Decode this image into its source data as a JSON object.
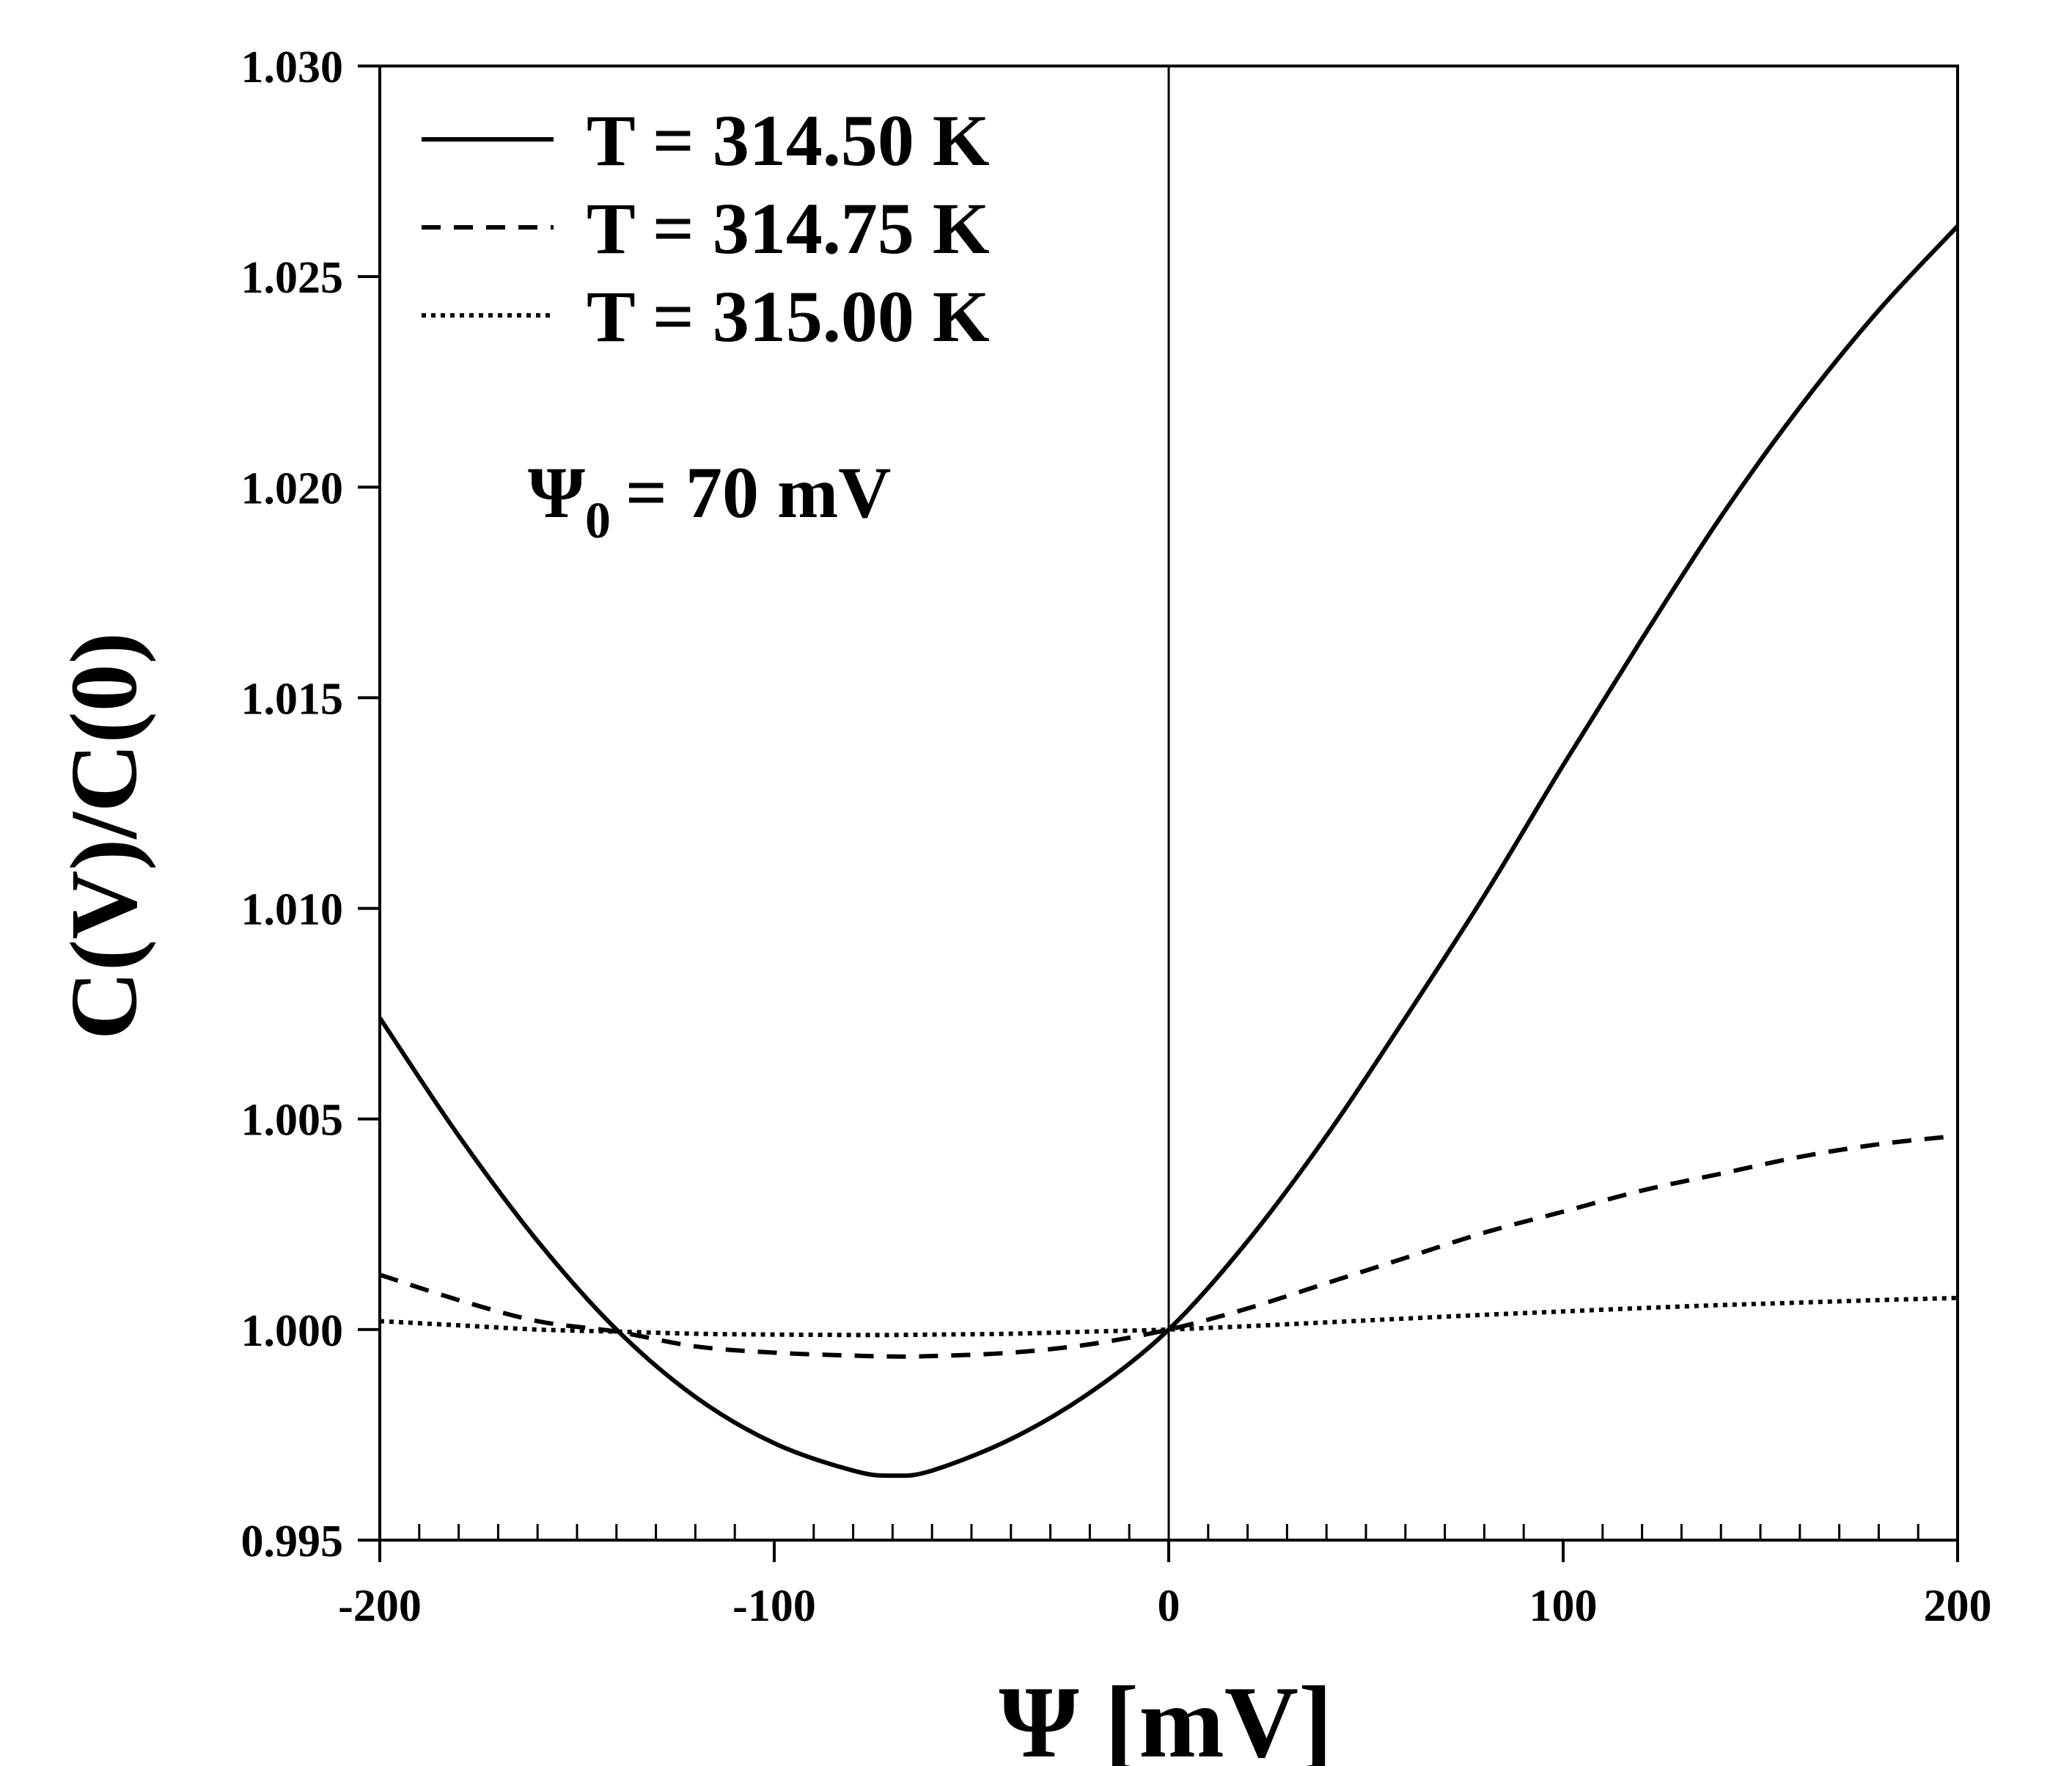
{
  "chart_data": {
    "type": "line",
    "title": "",
    "xlabel": "Ψ [mV]",
    "ylabel": "C(V)/C(0)",
    "xlim": [
      -200,
      200
    ],
    "ylim": [
      0.995,
      1.03
    ],
    "x_ticks": [
      -200,
      -100,
      0,
      100,
      200
    ],
    "x_tick_labels": [
      "-200",
      "-100",
      "0",
      "100",
      "200"
    ],
    "y_ticks": [
      0.995,
      1.0,
      1.005,
      1.01,
      1.015,
      1.02,
      1.025,
      1.03
    ],
    "y_tick_labels": [
      "0.995",
      "1.000",
      "1.005",
      "1.010",
      "1.015",
      "1.020",
      "1.025",
      "1.030"
    ],
    "grid": false,
    "legend_position": "top-left",
    "annotation": {
      "symbol": "Ψ",
      "subscript": "0",
      "text": "= 70 mV"
    },
    "x": [
      -200,
      -180,
      -160,
      -140,
      -120,
      -100,
      -80,
      -70,
      -60,
      -40,
      -20,
      0,
      20,
      40,
      60,
      80,
      100,
      120,
      140,
      160,
      180,
      200
    ],
    "series": [
      {
        "name": "T = 314.50 K",
        "style": "solid",
        "values": [
          1.0074,
          1.0046,
          1.0021,
          1.0,
          0.9984,
          0.9973,
          0.99665,
          0.99653,
          0.99665,
          0.9974,
          0.9985,
          1.0,
          1.0021,
          1.0046,
          1.0074,
          1.0103,
          1.0134,
          1.0164,
          1.0193,
          1.0219,
          1.0242,
          1.0262
        ]
      },
      {
        "name": "T = 314.75 K",
        "style": "dashed",
        "values": [
          1.0013,
          1.0007,
          1.0002,
          0.99995,
          0.9996,
          0.99945,
          0.99938,
          0.99936,
          0.99937,
          0.99945,
          0.99965,
          1.0,
          1.0005,
          1.0011,
          1.0017,
          1.0023,
          1.0028,
          1.0033,
          1.0037,
          1.0041,
          1.0044,
          1.0046
        ]
      },
      {
        "name": "T = 315.00 K",
        "style": "dotted",
        "values": [
          1.0002,
          1.0001,
          1.0,
          0.99995,
          0.9999,
          0.99988,
          0.99987,
          0.99987,
          0.99988,
          0.9999,
          0.99995,
          1.0,
          1.00008,
          1.00017,
          1.00026,
          1.00035,
          1.00043,
          1.00051,
          1.00058,
          1.00064,
          1.0007,
          1.00075
        ]
      }
    ]
  }
}
